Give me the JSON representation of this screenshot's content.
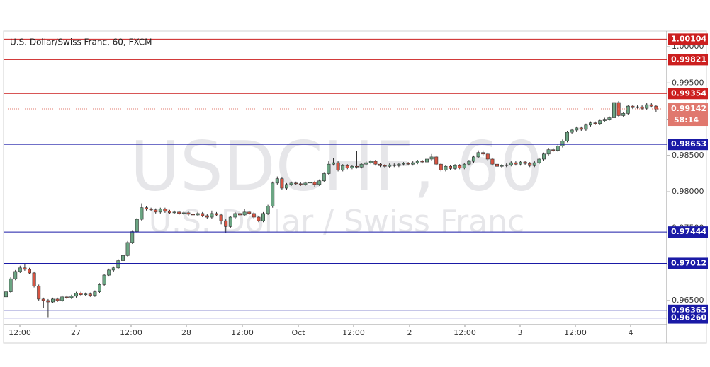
{
  "chart_data": {
    "type": "candlestick",
    "title": "U.S. Dollar/Swiss Franc, 60, FXCM",
    "watermark": {
      "symbol": "USDCHF, 60",
      "description": "U.S. Dollar / Swiss Franc"
    },
    "up_color": "#6ba583",
    "down_color": "#d75442",
    "candles": {
      "open": [
        0.9655,
        0.9662,
        0.968,
        0.969,
        0.9695,
        0.9693,
        0.9688,
        0.967,
        0.9652,
        0.965,
        0.9648,
        0.9652,
        0.965,
        0.9655,
        0.9654,
        0.9656,
        0.966,
        0.9658,
        0.9659,
        0.9657,
        0.9662,
        0.9672,
        0.9685,
        0.9692,
        0.9695,
        0.9705,
        0.9712,
        0.973,
        0.9745,
        0.9762,
        0.9778,
        0.9776,
        0.9775,
        0.9772,
        0.9776,
        0.9773,
        0.9771,
        0.9772,
        0.977,
        0.9771,
        0.9769,
        0.9768,
        0.977,
        0.9767,
        0.9765,
        0.977,
        0.9768,
        0.976,
        0.9752,
        0.9765,
        0.977,
        0.9768,
        0.9772,
        0.977,
        0.9765,
        0.976,
        0.977,
        0.978,
        0.9812,
        0.9818,
        0.9805,
        0.981,
        0.9812,
        0.9811,
        0.981,
        0.9812,
        0.9813,
        0.981,
        0.9815,
        0.9825,
        0.9838,
        0.984,
        0.983,
        0.9836,
        0.9833,
        0.9835,
        0.9834,
        0.9838,
        0.984,
        0.9842,
        0.9838,
        0.9836,
        0.9835,
        0.9837,
        0.9836,
        0.9838,
        0.9839,
        0.9838,
        0.984,
        0.9842,
        0.9841,
        0.9845,
        0.9848,
        0.9838,
        0.983,
        0.9835,
        0.9832,
        0.9836,
        0.9833,
        0.9838,
        0.9842,
        0.9848,
        0.9854,
        0.9852,
        0.9845,
        0.9838,
        0.9835,
        0.9836,
        0.9837,
        0.984,
        0.9838,
        0.9841,
        0.9839,
        0.9836,
        0.984,
        0.9845,
        0.9852,
        0.9858,
        0.9857,
        0.9863,
        0.987,
        0.9882,
        0.9885,
        0.9888,
        0.9886,
        0.9892,
        0.9895,
        0.9894,
        0.9898,
        0.99,
        0.9902,
        0.9923,
        0.9905,
        0.9908,
        0.9918,
        0.9916,
        0.9917,
        0.9915,
        0.992,
        0.9918
      ],
      "high": [
        0.9664,
        0.9682,
        0.9692,
        0.9698,
        0.97,
        0.9695,
        0.969,
        0.9672,
        0.9654,
        0.9652,
        0.9654,
        0.9654,
        0.9657,
        0.9657,
        0.9658,
        0.9662,
        0.9662,
        0.9661,
        0.9661,
        0.9664,
        0.9674,
        0.9687,
        0.9694,
        0.9697,
        0.9707,
        0.9714,
        0.9732,
        0.9747,
        0.9764,
        0.9784,
        0.978,
        0.9778,
        0.9777,
        0.9778,
        0.9778,
        0.9775,
        0.9774,
        0.9774,
        0.9773,
        0.9773,
        0.9771,
        0.9772,
        0.9772,
        0.9769,
        0.9774,
        0.9772,
        0.977,
        0.9762,
        0.9767,
        0.9772,
        0.9774,
        0.9776,
        0.9774,
        0.9772,
        0.9767,
        0.9772,
        0.9782,
        0.9814,
        0.9821,
        0.982,
        0.9812,
        0.9814,
        0.9814,
        0.9813,
        0.9814,
        0.9815,
        0.9815,
        0.9817,
        0.9827,
        0.9842,
        0.9846,
        0.9842,
        0.9838,
        0.9838,
        0.9837,
        0.9856,
        0.984,
        0.9842,
        0.9844,
        0.9844,
        0.984,
        0.9838,
        0.9839,
        0.9839,
        0.984,
        0.9841,
        0.9841,
        0.9842,
        0.9844,
        0.9844,
        0.9847,
        0.9852,
        0.985,
        0.984,
        0.9837,
        0.9837,
        0.9838,
        0.9838,
        0.984,
        0.9844,
        0.985,
        0.9857,
        0.9857,
        0.9854,
        0.9847,
        0.984,
        0.9838,
        0.9839,
        0.9842,
        0.9842,
        0.9843,
        0.9843,
        0.9841,
        0.9842,
        0.9847,
        0.9854,
        0.986,
        0.986,
        0.9865,
        0.9872,
        0.9884,
        0.9887,
        0.989,
        0.989,
        0.9894,
        0.9897,
        0.9897,
        0.99,
        0.9902,
        0.9904,
        0.9925,
        0.9925,
        0.991,
        0.992,
        0.992,
        0.9919,
        0.9919,
        0.9923,
        0.9922,
        0.992
      ],
      "low": [
        0.9653,
        0.966,
        0.9678,
        0.9688,
        0.9691,
        0.9686,
        0.9668,
        0.965,
        0.964,
        0.9627,
        0.9646,
        0.9648,
        0.9648,
        0.9652,
        0.9652,
        0.9654,
        0.9656,
        0.9656,
        0.9655,
        0.9655,
        0.966,
        0.967,
        0.9683,
        0.969,
        0.9693,
        0.9703,
        0.971,
        0.9728,
        0.9743,
        0.976,
        0.9774,
        0.9773,
        0.977,
        0.977,
        0.9771,
        0.9769,
        0.9769,
        0.9768,
        0.9768,
        0.9767,
        0.9766,
        0.9766,
        0.9765,
        0.9763,
        0.9763,
        0.9766,
        0.9755,
        0.9743,
        0.975,
        0.9763,
        0.9766,
        0.9766,
        0.9768,
        0.9763,
        0.9758,
        0.9758,
        0.9768,
        0.9778,
        0.981,
        0.9803,
        0.9803,
        0.9808,
        0.9809,
        0.9808,
        0.9808,
        0.981,
        0.9806,
        0.9808,
        0.9813,
        0.9823,
        0.9836,
        0.9828,
        0.9828,
        0.9831,
        0.9831,
        0.9832,
        0.9832,
        0.9836,
        0.9838,
        0.9836,
        0.9834,
        0.9833,
        0.9833,
        0.9834,
        0.9834,
        0.9836,
        0.9836,
        0.9836,
        0.9838,
        0.9839,
        0.9839,
        0.9843,
        0.9836,
        0.9828,
        0.9828,
        0.983,
        0.983,
        0.9831,
        0.9831,
        0.9836,
        0.984,
        0.9846,
        0.985,
        0.9843,
        0.9836,
        0.9833,
        0.9833,
        0.9834,
        0.9835,
        0.9836,
        0.9836,
        0.9837,
        0.9834,
        0.9834,
        0.9838,
        0.9843,
        0.985,
        0.9855,
        0.9855,
        0.9861,
        0.9868,
        0.988,
        0.9883,
        0.9884,
        0.9884,
        0.989,
        0.9892,
        0.9892,
        0.9896,
        0.9898,
        0.99,
        0.9903,
        0.9903,
        0.9906,
        0.9914,
        0.9914,
        0.9913,
        0.9913,
        0.9916,
        0.991
      ],
      "close": [
        0.9662,
        0.968,
        0.969,
        0.9695,
        0.9693,
        0.9688,
        0.967,
        0.9652,
        0.965,
        0.9648,
        0.9652,
        0.965,
        0.9655,
        0.9654,
        0.9656,
        0.966,
        0.9658,
        0.9659,
        0.9657,
        0.9662,
        0.9672,
        0.9685,
        0.9692,
        0.9695,
        0.9705,
        0.9712,
        0.973,
        0.9745,
        0.9762,
        0.9778,
        0.9776,
        0.9775,
        0.9772,
        0.9776,
        0.9773,
        0.9771,
        0.9772,
        0.977,
        0.9771,
        0.9769,
        0.9768,
        0.977,
        0.9767,
        0.9765,
        0.977,
        0.9768,
        0.976,
        0.9752,
        0.9765,
        0.977,
        0.9768,
        0.9772,
        0.977,
        0.9765,
        0.976,
        0.977,
        0.978,
        0.9812,
        0.9818,
        0.9805,
        0.981,
        0.9812,
        0.9811,
        0.981,
        0.9812,
        0.9813,
        0.981,
        0.9815,
        0.9825,
        0.9838,
        0.984,
        0.983,
        0.9836,
        0.9833,
        0.9835,
        0.9834,
        0.9838,
        0.984,
        0.9842,
        0.9838,
        0.9836,
        0.9835,
        0.9837,
        0.9836,
        0.9838,
        0.9839,
        0.9838,
        0.984,
        0.9842,
        0.9841,
        0.9845,
        0.9848,
        0.9838,
        0.983,
        0.9835,
        0.9832,
        0.9836,
        0.9833,
        0.9838,
        0.9842,
        0.9848,
        0.9854,
        0.9852,
        0.9845,
        0.9838,
        0.9835,
        0.9836,
        0.9837,
        0.984,
        0.9838,
        0.9841,
        0.9839,
        0.9836,
        0.984,
        0.9845,
        0.9852,
        0.9858,
        0.9857,
        0.9863,
        0.987,
        0.9882,
        0.9885,
        0.9888,
        0.9886,
        0.9892,
        0.9895,
        0.9894,
        0.9898,
        0.99,
        0.9902,
        0.9923,
        0.9905,
        0.9908,
        0.9918,
        0.9916,
        0.9917,
        0.9915,
        0.992,
        0.9918,
        0.9914
      ]
    },
    "xtick_labels": [
      "12:00",
      "27",
      "12:00",
      "28",
      "12:00",
      "Oct",
      "12:00",
      "2",
      "12:00",
      "3",
      "12:00",
      "4"
    ],
    "ylim": [
      0.96168,
      1.00215
    ],
    "yticks": [
      {
        "value": 0.965,
        "label": "0.96500"
      },
      {
        "value": 0.97,
        "label": "0.97000"
      },
      {
        "value": 0.975,
        "label": "0.97500"
      },
      {
        "value": 0.98,
        "label": "0.98000"
      },
      {
        "value": 0.985,
        "label": "0.98500"
      },
      {
        "value": 0.99,
        "label": "0.99000"
      },
      {
        "value": 0.995,
        "label": "0.99500"
      },
      {
        "value": 1.0,
        "label": "1.00000"
      }
    ],
    "levels": [
      {
        "value": 1.00104,
        "color": "#cc1f1f"
      },
      {
        "value": 0.99821,
        "color": "#cc1f1f"
      },
      {
        "value": 0.99354,
        "color": "#cc1f1f"
      },
      {
        "value": 0.98653,
        "color": "#1a1aa6"
      },
      {
        "value": 0.97444,
        "color": "#1a1aa6"
      },
      {
        "value": 0.97012,
        "color": "#1a1aa6"
      },
      {
        "value": 0.96365,
        "color": "#1a1aa6"
      },
      {
        "value": 0.9626,
        "label": "0.96260",
        "color": "#1a1aa6"
      }
    ],
    "last_price": {
      "value": 0.99142,
      "countdown": "58:14",
      "color": "#e0786e"
    }
  }
}
